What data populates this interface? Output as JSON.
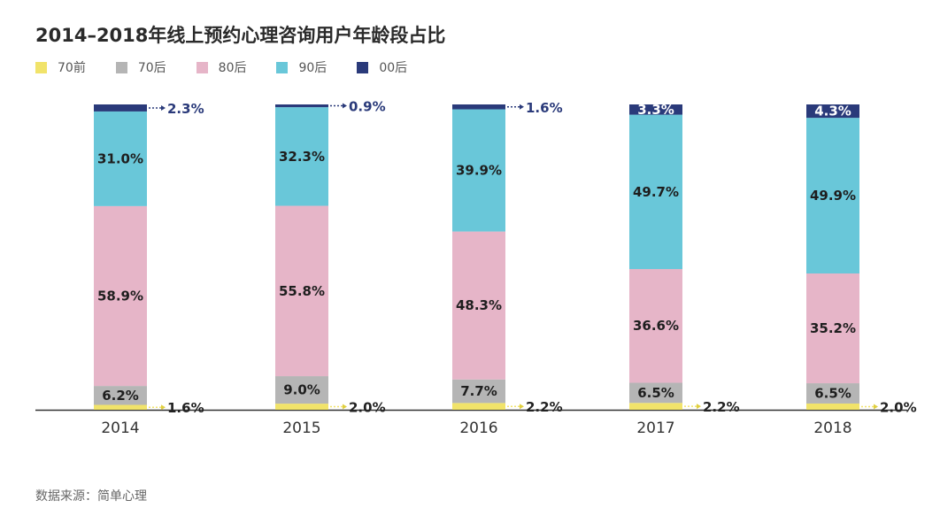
{
  "title": "2014–2018年线上预约心理咨询用户年龄段占比",
  "legend": [
    {
      "label": "70前",
      "color": "#f1e36a"
    },
    {
      "label": "70后",
      "color": "#b5b5b5"
    },
    {
      "label": "80后",
      "color": "#e6b5c8"
    },
    {
      "label": "90后",
      "color": "#69c7d9"
    },
    {
      "label": "00后",
      "color": "#2a3a7a"
    }
  ],
  "source": "数据来源：简单心理",
  "chart_data": {
    "type": "bar",
    "stacked": true,
    "categories": [
      "2014",
      "2015",
      "2016",
      "2017",
      "2018"
    ],
    "series": [
      {
        "name": "70前",
        "color": "#f1e36a",
        "values": [
          1.6,
          2.0,
          2.2,
          2.2,
          2.0
        ],
        "labels": [
          "1.6%",
          "2.0%",
          "2.2%",
          "2.2%",
          "2.0%"
        ]
      },
      {
        "name": "70后",
        "color": "#b5b5b5",
        "values": [
          6.2,
          9.0,
          7.7,
          6.5,
          6.5
        ],
        "labels": [
          "6.2%",
          "9.0%",
          "7.7%",
          "6.5%",
          "6.5%"
        ]
      },
      {
        "name": "80后",
        "color": "#e6b5c8",
        "values": [
          58.9,
          55.8,
          48.3,
          36.6,
          35.2
        ],
        "labels": [
          "58.9%",
          "55.8%",
          "48.3%",
          "36.6%",
          "35.2%"
        ]
      },
      {
        "name": "90后",
        "color": "#69c7d9",
        "values": [
          31.0,
          32.3,
          39.9,
          49.7,
          49.9
        ],
        "labels": [
          "31.0%",
          "32.3%",
          "39.9%",
          "49.7%",
          "49.9%"
        ]
      },
      {
        "name": "00后",
        "color": "#2a3a7a",
        "values": [
          2.3,
          0.9,
          1.6,
          3.3,
          4.3
        ],
        "labels": [
          "2.3%",
          "0.9%",
          "1.6%",
          "3.3%",
          "4.3%"
        ]
      }
    ],
    "ylim": [
      0,
      100
    ],
    "grid": false
  }
}
